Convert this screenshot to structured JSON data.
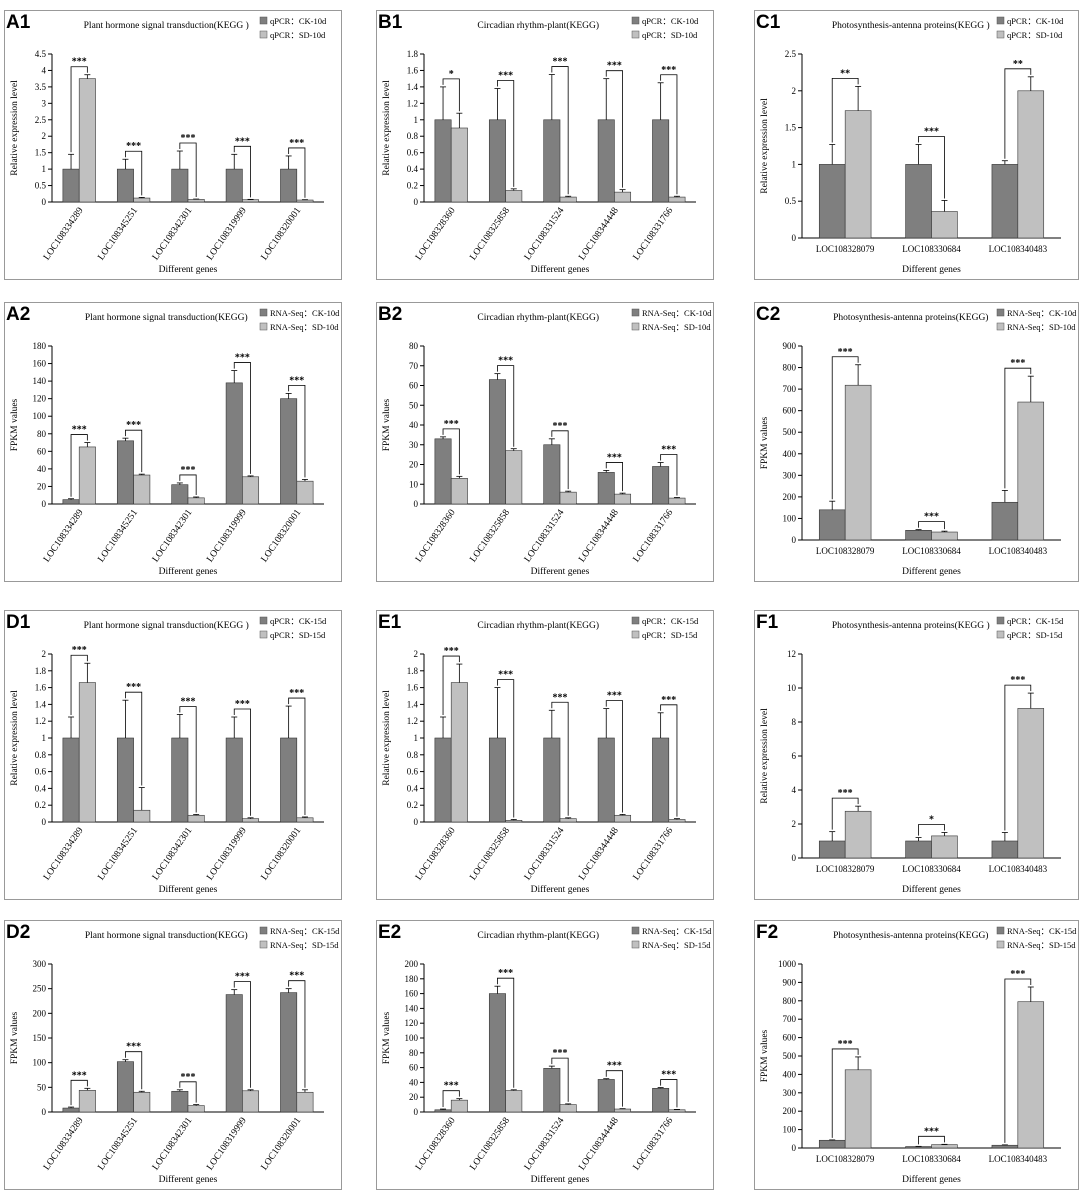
{
  "colors": {
    "dark": "#7f7f7f",
    "light": "#c0c0c0",
    "frame": "#999999"
  },
  "chart_data": [
    {
      "id": "A1",
      "type": "bar",
      "title": "Plant hormone signal transduction(KEGG )",
      "xlabel": "Different genes",
      "ylabel": "Relative expression level",
      "categories": [
        "LOC108334289",
        "LOC108345251",
        "LOC108342301",
        "LOC108319999",
        "LOC108320001"
      ],
      "series": [
        {
          "name": "qPCR：CK-10d",
          "values": [
            1,
            1,
            1,
            1,
            1
          ],
          "errors": [
            0.45,
            0.3,
            0.55,
            0.45,
            0.4
          ]
        },
        {
          "name": "qPCR：SD-10d",
          "values": [
            3.75,
            0.12,
            0.08,
            0.07,
            0.06
          ],
          "errors": [
            0.12,
            0.02,
            0.01,
            0.01,
            0.01
          ]
        }
      ],
      "significance": [
        "***",
        "***",
        "***",
        "***",
        "***"
      ],
      "ylim": [
        0,
        4.5
      ],
      "yticks": [
        0,
        0.5,
        1,
        1.5,
        2,
        2.5,
        3,
        3.5,
        4,
        4.5
      ],
      "xrot": true
    },
    {
      "id": "B1",
      "type": "bar",
      "title": "Circadian rhythm-plant(KEGG)",
      "xlabel": "Different genes",
      "ylabel": "Relative expression level",
      "categories": [
        "LOC108328360",
        "LOC108325858",
        "LOC108331524",
        "LOC108344448",
        "LOC108331766"
      ],
      "series": [
        {
          "name": "qPCR：CK-10d",
          "values": [
            1,
            1,
            1,
            1,
            1
          ],
          "errors": [
            0.4,
            0.38,
            0.55,
            0.5,
            0.45
          ]
        },
        {
          "name": "qPCR：SD-10d",
          "values": [
            0.9,
            0.14,
            0.06,
            0.12,
            0.06
          ],
          "errors": [
            0.18,
            0.02,
            0.01,
            0.03,
            0.01
          ]
        }
      ],
      "significance": [
        "*",
        "***",
        "***",
        "***",
        "***"
      ],
      "ylim": [
        0,
        1.8
      ],
      "yticks": [
        0,
        0.2,
        0.4,
        0.6,
        0.8,
        1,
        1.2,
        1.4,
        1.6,
        1.8
      ],
      "xrot": true
    },
    {
      "id": "C1",
      "type": "bar",
      "title": "Photosynthesis-antenna proteins(KEGG )",
      "xlabel": "Different genes",
      "ylabel": "Relative expression level",
      "categories": [
        "LOC108328079",
        "LOC108330684",
        "LOC108340483"
      ],
      "series": [
        {
          "name": "qPCR：CK-10d",
          "values": [
            1,
            1,
            1
          ],
          "errors": [
            0.27,
            0.27,
            0.05
          ]
        },
        {
          "name": "qPCR：SD-10d",
          "values": [
            1.73,
            0.36,
            2.0
          ],
          "errors": [
            0.33,
            0.15,
            0.19
          ]
        }
      ],
      "significance": [
        "**",
        "***",
        "**"
      ],
      "ylim": [
        0,
        2.5
      ],
      "yticks": [
        0,
        0.5,
        1,
        1.5,
        2,
        2.5
      ],
      "xrot": false
    },
    {
      "id": "A2",
      "type": "bar",
      "title": "Plant hormone signal transduction(KEGG)",
      "xlabel": "Different genes",
      "ylabel": "FPKM values",
      "categories": [
        "LOC108334289",
        "LOC108345251",
        "LOC108342301",
        "LOC108319999",
        "LOC108320001"
      ],
      "series": [
        {
          "name": "RNA-Seq：CK-10d",
          "values": [
            5,
            72,
            22,
            138,
            120
          ],
          "errors": [
            1,
            3,
            2,
            14,
            6
          ]
        },
        {
          "name": "RNA-Seq：SD-10d",
          "values": [
            65,
            33,
            7,
            31,
            26
          ],
          "errors": [
            5,
            1,
            1,
            1,
            2
          ]
        }
      ],
      "significance": [
        "***",
        "***",
        "***",
        "***",
        "***"
      ],
      "ylim": [
        0,
        180
      ],
      "yticks": [
        0,
        20,
        40,
        60,
        80,
        100,
        120,
        140,
        160,
        180
      ],
      "xrot": true
    },
    {
      "id": "B2",
      "type": "bar",
      "title": "Circadian rhythm-plant(KEGG)",
      "xlabel": "Different genes",
      "ylabel": "FPKM values",
      "categories": [
        "LOC108328360",
        "LOC108325858",
        "LOC108331524",
        "LOC108344448",
        "LOC108331766"
      ],
      "series": [
        {
          "name": "RNA-Seq：CK-10d",
          "values": [
            33,
            63,
            30,
            16,
            19
          ],
          "errors": [
            1,
            3,
            3,
            1,
            2
          ]
        },
        {
          "name": "RNA-Seq：SD-10d",
          "values": [
            13,
            27,
            6,
            5,
            3
          ],
          "errors": [
            1,
            1,
            0.5,
            0.5,
            0.3
          ]
        }
      ],
      "significance": [
        "***",
        "***",
        "***",
        "***",
        "***"
      ],
      "ylim": [
        0,
        80
      ],
      "yticks": [
        0,
        10,
        20,
        30,
        40,
        50,
        60,
        70,
        80
      ],
      "xrot": true
    },
    {
      "id": "C2",
      "type": "bar",
      "title": "Photosynthesis-antenna proteins(KEGG)",
      "xlabel": "Different genes",
      "ylabel": "FPKM values",
      "categories": [
        "LOC108328079",
        "LOC108330684",
        "LOC108340483"
      ],
      "series": [
        {
          "name": "RNA-Seq：CK-10d",
          "values": [
            140,
            45,
            175
          ],
          "errors": [
            40,
            3,
            55
          ]
        },
        {
          "name": "RNA-Seq：SD-10d",
          "values": [
            718,
            37,
            640
          ],
          "errors": [
            95,
            4,
            120
          ]
        }
      ],
      "significance": [
        "***",
        "***",
        "***"
      ],
      "ylim": [
        0,
        900
      ],
      "yticks": [
        0,
        100,
        200,
        300,
        400,
        500,
        600,
        700,
        800,
        900
      ],
      "xrot": false
    },
    {
      "id": "D1",
      "type": "bar",
      "title": "Plant hormone signal transduction(KEGG )",
      "xlabel": "Different genes",
      "ylabel": "Relative expression level",
      "categories": [
        "LOC108334289",
        "LOC108345251",
        "LOC108342301",
        "LOC108319999",
        "LOC108320001"
      ],
      "series": [
        {
          "name": "qPCR：CK-15d",
          "values": [
            1,
            1,
            1,
            1,
            1
          ],
          "errors": [
            0.25,
            0.45,
            0.28,
            0.25,
            0.38
          ]
        },
        {
          "name": "qPCR：SD-15d",
          "values": [
            1.66,
            0.14,
            0.08,
            0.04,
            0.05
          ],
          "errors": [
            0.23,
            0.27,
            0.01,
            0.01,
            0.01
          ]
        }
      ],
      "significance": [
        "***",
        "***",
        "***",
        "***",
        "***"
      ],
      "ylim": [
        0,
        2
      ],
      "yticks": [
        0,
        0.2,
        0.4,
        0.6,
        0.8,
        1,
        1.2,
        1.4,
        1.6,
        1.8,
        2
      ],
      "xrot": true
    },
    {
      "id": "E1",
      "type": "bar",
      "title": "Circadian rhythm-plant(KEGG)",
      "xlabel": "Different genes",
      "ylabel": "Relative expression level",
      "categories": [
        "LOC108328360",
        "LOC108325858",
        "LOC108331524",
        "LOC108344448",
        "LOC108331766"
      ],
      "series": [
        {
          "name": "qPCR：CK-15d",
          "values": [
            1,
            1,
            1,
            1,
            1
          ],
          "errors": [
            0.25,
            0.6,
            0.33,
            0.35,
            0.3
          ]
        },
        {
          "name": "qPCR：SD-15d",
          "values": [
            1.66,
            0.02,
            0.04,
            0.08,
            0.03
          ],
          "errors": [
            0.22,
            0.01,
            0.01,
            0.01,
            0.01
          ]
        }
      ],
      "significance": [
        "***",
        "***",
        "***",
        "***",
        "***"
      ],
      "ylim": [
        0,
        2
      ],
      "yticks": [
        0,
        0.2,
        0.4,
        0.6,
        0.8,
        1,
        1.2,
        1.4,
        1.6,
        1.8,
        2
      ],
      "xrot": true
    },
    {
      "id": "F1",
      "type": "bar",
      "title": "Photosynthesis-antenna proteins(KEGG )",
      "xlabel": "Different genes",
      "ylabel": "Relative expression level",
      "categories": [
        "LOC108328079",
        "LOC108330684",
        "LOC108340483"
      ],
      "series": [
        {
          "name": "qPCR：CK-15d",
          "values": [
            1,
            1,
            1
          ],
          "errors": [
            0.55,
            0.2,
            0.5
          ]
        },
        {
          "name": "qPCR：SD-15d",
          "values": [
            2.75,
            1.3,
            8.8
          ],
          "errors": [
            0.3,
            0.2,
            0.9
          ]
        }
      ],
      "significance": [
        "***",
        "*",
        "***"
      ],
      "ylim": [
        0,
        12
      ],
      "yticks": [
        0,
        2,
        4,
        6,
        8,
        10,
        12
      ],
      "xrot": false
    },
    {
      "id": "D2",
      "type": "bar",
      "title": "Plant hormone signal transduction(KEGG)",
      "xlabel": "Different genes",
      "ylabel": "FPKM values",
      "categories": [
        "LOC108334289",
        "LOC108345251",
        "LOC108342301",
        "LOC108319999",
        "LOC108320001"
      ],
      "series": [
        {
          "name": "RNA-Seq：CK-15d",
          "values": [
            8,
            102,
            42,
            238,
            242
          ],
          "errors": [
            2,
            4,
            3,
            10,
            8
          ]
        },
        {
          "name": "RNA-Seq：SD-15d",
          "values": [
            44,
            40,
            13,
            43,
            40
          ],
          "errors": [
            4,
            2,
            2,
            2,
            5
          ]
        }
      ],
      "significance": [
        "***",
        "***",
        "***",
        "***",
        "***"
      ],
      "ylim": [
        0,
        300
      ],
      "yticks": [
        0,
        50,
        100,
        150,
        200,
        250,
        300
      ],
      "xrot": true
    },
    {
      "id": "E2",
      "type": "bar",
      "title": "Circadian rhythm-plant(KEGG)",
      "xlabel": "Different genes",
      "ylabel": "FPKM values",
      "categories": [
        "LOC108328360",
        "LOC108325858",
        "LOC108331524",
        "LOC108344448",
        "LOC108331766"
      ],
      "series": [
        {
          "name": "RNA-Seq：CK-15d",
          "values": [
            3,
            160,
            59,
            44,
            32
          ],
          "errors": [
            1,
            10,
            3,
            1,
            1
          ]
        },
        {
          "name": "RNA-Seq：SD-15d",
          "values": [
            16,
            29,
            10,
            4,
            3
          ],
          "errors": [
            2,
            1,
            1,
            0.5,
            0.5
          ]
        }
      ],
      "significance": [
        "***",
        "***",
        "***",
        "***",
        "***"
      ],
      "ylim": [
        0,
        200
      ],
      "yticks": [
        0,
        20,
        40,
        60,
        80,
        100,
        120,
        140,
        160,
        180,
        200
      ],
      "xrot": true
    },
    {
      "id": "F2",
      "type": "bar",
      "title": "Photosynthesis-antenna proteins(KEGG)",
      "xlabel": "Different genes",
      "ylabel": "FPKM values",
      "categories": [
        "LOC108328079",
        "LOC108330684",
        "LOC108340483"
      ],
      "series": [
        {
          "name": "RNA-Seq：CK-15d",
          "values": [
            42,
            8,
            15
          ],
          "errors": [
            2,
            1,
            2
          ]
        },
        {
          "name": "RNA-Seq：SD-15d",
          "values": [
            425,
            18,
            795
          ],
          "errors": [
            70,
            2,
            80
          ]
        }
      ],
      "significance": [
        "***",
        "***",
        "***"
      ],
      "ylim": [
        0,
        1000
      ],
      "yticks": [
        0,
        100,
        200,
        300,
        400,
        500,
        600,
        700,
        800,
        900,
        1000
      ],
      "xrot": false
    }
  ]
}
